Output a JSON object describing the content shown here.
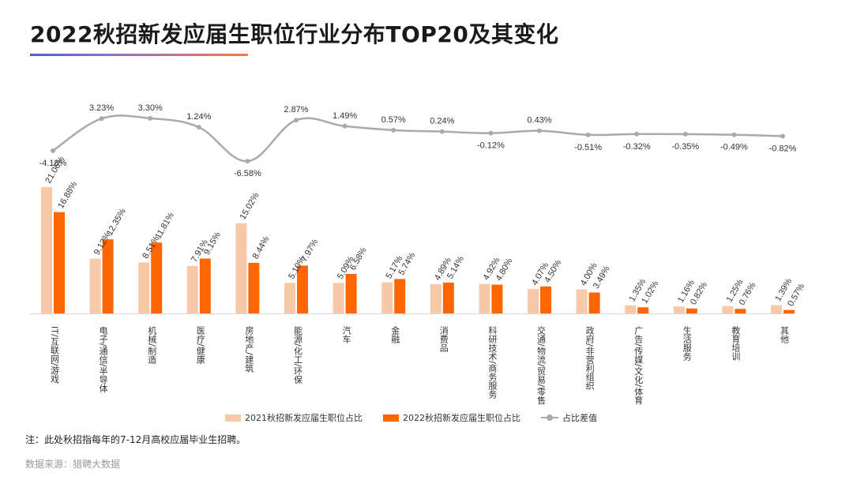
{
  "title": "2022秋招新发应届生职位行业分布TOP20及其变化",
  "note": "注：此处秋招指每年的7-12月高校应届毕业生招聘。",
  "source": "数据来源：猎聘大数据",
  "colors": {
    "series2021": "#f7c9a8",
    "series2022": "#ff6600",
    "diffLine": "#aaaaaa"
  },
  "legend": {
    "series2021": "2021秋招新发应届生职位占比",
    "series2022": "2022秋招新发应届生职位占比",
    "diff": "占比差值"
  },
  "chart_data": {
    "type": "bar",
    "title": "2022秋招新发应届生职位行业分布TOP20及其变化",
    "categories": [
      "IT/互联网/游戏",
      "电子/通信/半导体",
      "机械/制造",
      "医疗/健康",
      "房地产/建筑",
      "能源/化工/环保",
      "汽车",
      "金融",
      "消费品",
      "科研技术/商务服务",
      "交通/物流/贸易/零售",
      "政府/非营利组织",
      "广告/传媒/文化/体育",
      "生活服务",
      "教育培训",
      "其他"
    ],
    "series": [
      {
        "name": "2021秋招新发应届生职位占比",
        "values": [
          21.06,
          9.12,
          8.51,
          7.91,
          15.02,
          5.1,
          5.09,
          5.17,
          4.89,
          4.92,
          4.07,
          4.0,
          1.35,
          1.16,
          1.25,
          1.39
        ]
      },
      {
        "name": "2022秋招新发应届生职位占比",
        "values": [
          16.88,
          12.35,
          11.81,
          9.15,
          8.44,
          7.97,
          6.58,
          5.74,
          5.14,
          4.8,
          4.5,
          3.49,
          1.02,
          0.82,
          0.76,
          0.57
        ]
      }
    ],
    "diff": {
      "name": "占比差值",
      "type": "line",
      "values": [
        -4.18,
        3.23,
        3.3,
        1.24,
        -6.58,
        2.87,
        1.49,
        0.57,
        0.24,
        -0.12,
        0.43,
        -0.51,
        -0.32,
        -0.35,
        -0.49,
        -0.82
      ]
    },
    "unit": "%",
    "legend_position": "bottom"
  }
}
